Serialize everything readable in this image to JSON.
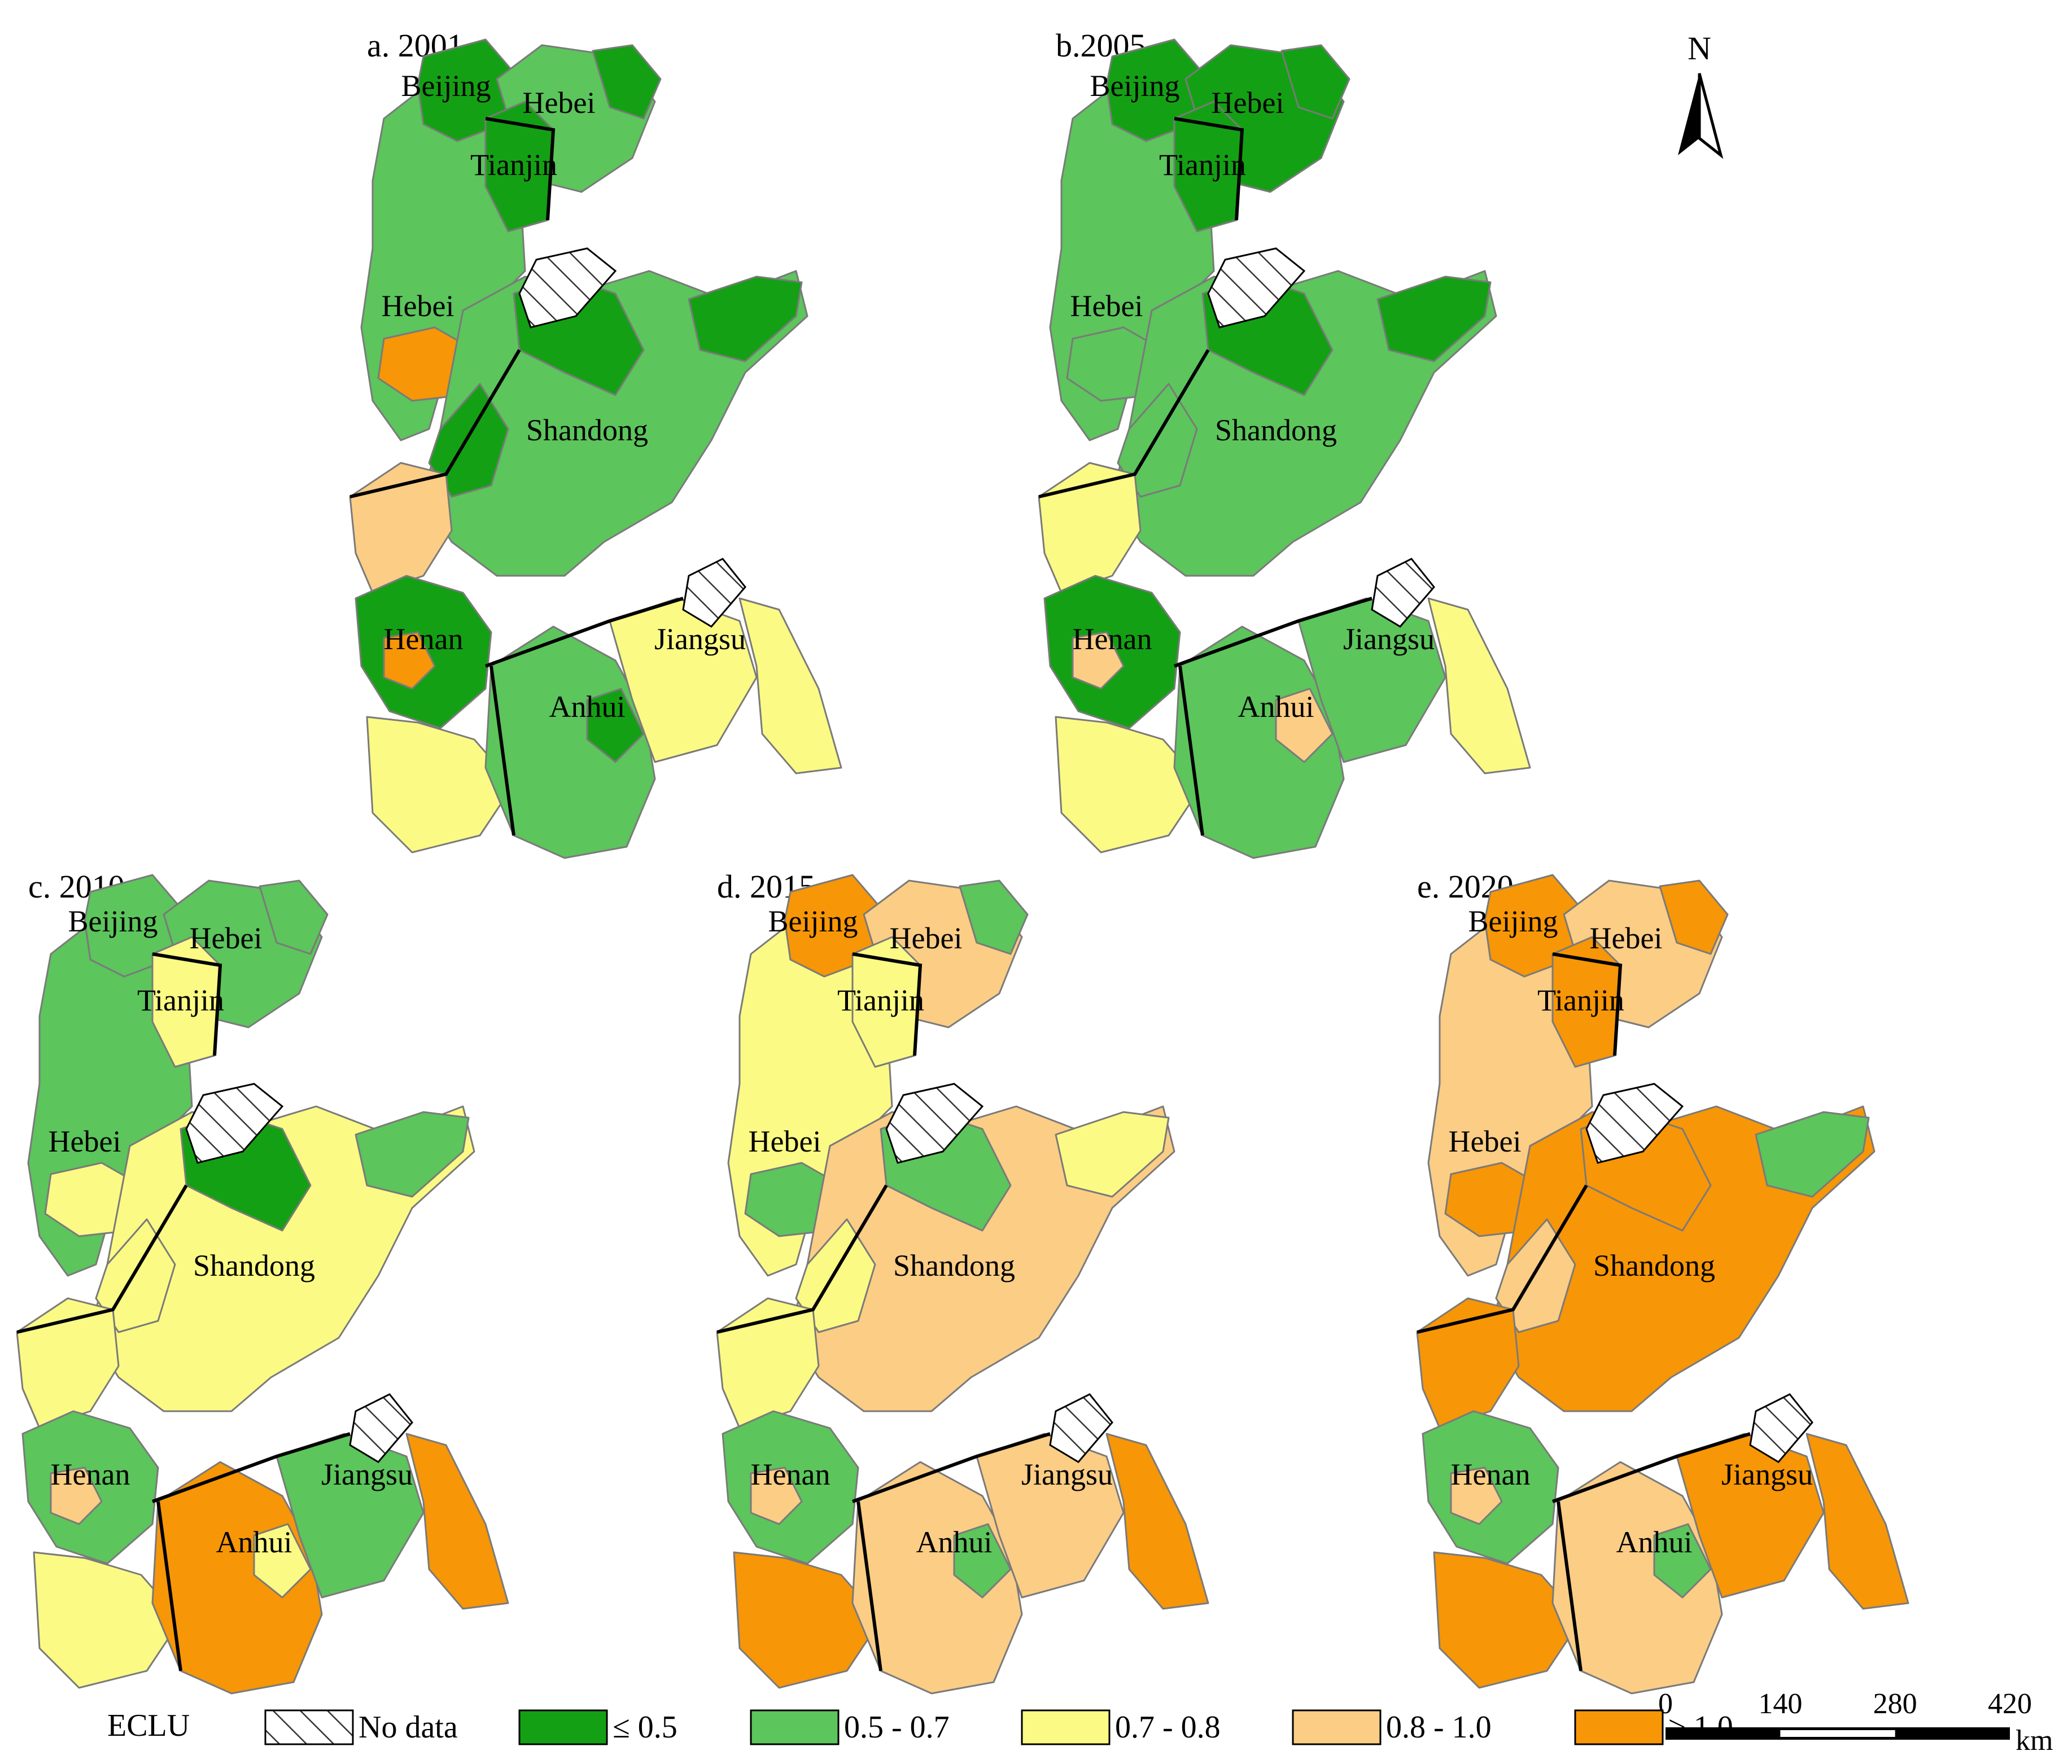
{
  "colors": {
    "no_data": "#ffffff",
    "le_0_5": "#14a014",
    "c_0_5_0_7": "#5cc55c",
    "c_0_7_0_8": "#fbfa84",
    "c_0_8_1_0": "#fbcd85",
    "ge_1_0": "#f79606",
    "county_border": "#7a7a7a",
    "province_border": "#000000"
  },
  "panels": [
    {
      "title": "a. 2001",
      "labels": {
        "beijing": "Beijing",
        "tianjin": "Tianjin",
        "hebei_n": "Hebei",
        "hebei_s": "Hebei",
        "shandong": "Shandong",
        "henan": "Henan",
        "jiangsu": "Jiangsu",
        "anhui": "Anhui"
      },
      "fills": {
        "beijing": "le_0_5",
        "tianjin": "le_0_5",
        "hebei_ne": "c_0_5_0_7",
        "hebei_ne_tip": "le_0_5",
        "hebei_w": "c_0_5_0_7",
        "hebei_s_spot": "ge_1_0",
        "shandong_w": "le_0_5",
        "shandong_c": "c_0_5_0_7",
        "shandong_n": "le_0_5",
        "shandong_e": "le_0_5",
        "henan_n": "c_0_8_1_0",
        "henan_c": "le_0_5",
        "henan_s": "c_0_7_0_8",
        "henan_spot": "ge_1_0",
        "jiangsu": "c_0_7_0_8",
        "jiangsu_e": "c_0_7_0_8",
        "anhui": "c_0_5_0_7",
        "anhui_spot": "le_0_5"
      }
    },
    {
      "title": "b.2005",
      "labels": {
        "beijing": "Beijing",
        "tianjin": "Tianjin",
        "hebei_n": "Hebei",
        "hebei_s": "Hebei",
        "shandong": "Shandong",
        "henan": "Henan",
        "jiangsu": "Jiangsu",
        "anhui": "Anhui"
      },
      "fills": {
        "beijing": "le_0_5",
        "tianjin": "le_0_5",
        "hebei_ne": "le_0_5",
        "hebei_ne_tip": "le_0_5",
        "hebei_w": "c_0_5_0_7",
        "hebei_s_spot": "c_0_5_0_7",
        "shandong_w": "c_0_5_0_7",
        "shandong_c": "c_0_5_0_7",
        "shandong_n": "le_0_5",
        "shandong_e": "le_0_5",
        "henan_n": "c_0_7_0_8",
        "henan_c": "le_0_5",
        "henan_s": "c_0_7_0_8",
        "henan_spot": "c_0_8_1_0",
        "jiangsu": "c_0_5_0_7",
        "jiangsu_e": "c_0_7_0_8",
        "anhui": "c_0_5_0_7",
        "anhui_spot": "c_0_8_1_0"
      }
    },
    {
      "title": "c. 2010",
      "labels": {
        "beijing": "Beijing",
        "tianjin": "Tianjin",
        "hebei_n": "Hebei",
        "hebei_s": "Hebei",
        "shandong": "Shandong",
        "henan": "Henan",
        "jiangsu": "Jiangsu",
        "anhui": "Anhui"
      },
      "fills": {
        "beijing": "c_0_5_0_7",
        "tianjin": "c_0_7_0_8",
        "hebei_ne": "c_0_5_0_7",
        "hebei_ne_tip": "c_0_5_0_7",
        "hebei_w": "c_0_5_0_7",
        "hebei_s_spot": "c_0_7_0_8",
        "shandong_w": "c_0_7_0_8",
        "shandong_c": "c_0_7_0_8",
        "shandong_n": "le_0_5",
        "shandong_e": "c_0_5_0_7",
        "henan_n": "c_0_7_0_8",
        "henan_c": "c_0_5_0_7",
        "henan_s": "c_0_7_0_8",
        "henan_spot": "c_0_8_1_0",
        "jiangsu": "c_0_5_0_7",
        "jiangsu_e": "ge_1_0",
        "anhui": "ge_1_0",
        "anhui_spot": "c_0_7_0_8"
      }
    },
    {
      "title": "d. 2015",
      "labels": {
        "beijing": "Beijing",
        "tianjin": "Tianjin",
        "hebei_n": "Hebei",
        "hebei_s": "Hebei",
        "shandong": "Shandong",
        "henan": "Henan",
        "jiangsu": "Jiangsu",
        "anhui": "Anhui"
      },
      "fills": {
        "beijing": "ge_1_0",
        "tianjin": "c_0_7_0_8",
        "hebei_ne": "c_0_8_1_0",
        "hebei_ne_tip": "c_0_5_0_7",
        "hebei_w": "c_0_7_0_8",
        "hebei_s_spot": "c_0_5_0_7",
        "shandong_w": "c_0_7_0_8",
        "shandong_c": "c_0_8_1_0",
        "shandong_n": "c_0_5_0_7",
        "shandong_e": "c_0_7_0_8",
        "henan_n": "c_0_7_0_8",
        "henan_c": "c_0_5_0_7",
        "henan_s": "ge_1_0",
        "henan_spot": "c_0_8_1_0",
        "jiangsu": "c_0_8_1_0",
        "jiangsu_e": "ge_1_0",
        "anhui": "c_0_8_1_0",
        "anhui_spot": "c_0_5_0_7"
      }
    },
    {
      "title": "e. 2020",
      "labels": {
        "beijing": "Beijing",
        "tianjin": "Tianjin",
        "hebei_n": "Hebei",
        "hebei_s": "Hebei",
        "shandong": "Shandong",
        "henan": "Henan",
        "jiangsu": "Jiangsu",
        "anhui": "Anhui"
      },
      "fills": {
        "beijing": "ge_1_0",
        "tianjin": "ge_1_0",
        "hebei_ne": "c_0_8_1_0",
        "hebei_ne_tip": "ge_1_0",
        "hebei_w": "c_0_8_1_0",
        "hebei_s_spot": "ge_1_0",
        "shandong_w": "c_0_8_1_0",
        "shandong_c": "ge_1_0",
        "shandong_n": "ge_1_0",
        "shandong_e": "c_0_5_0_7",
        "henan_n": "ge_1_0",
        "henan_c": "c_0_5_0_7",
        "henan_s": "ge_1_0",
        "henan_spot": "c_0_8_1_0",
        "jiangsu": "ge_1_0",
        "jiangsu_e": "ge_1_0",
        "anhui": "c_0_8_1_0",
        "anhui_spot": "c_0_5_0_7"
      }
    }
  ],
  "north_arrow": {
    "label": "N"
  },
  "legend": {
    "title": "ECLU",
    "items": [
      {
        "key": "no_data",
        "label": "No data",
        "hatched": true
      },
      {
        "key": "le_0_5",
        "label": "≤ 0.5"
      },
      {
        "key": "c_0_5_0_7",
        "label": "0.5 - 0.7"
      },
      {
        "key": "c_0_7_0_8",
        "label": "0.7 - 0.8"
      },
      {
        "key": "c_0_8_1_0",
        "label": "0.8 - 1.0"
      },
      {
        "key": "ge_1_0",
        "label": "≥ 1.0"
      }
    ]
  },
  "scale_bar": {
    "ticks": [
      "0",
      "140",
      "280",
      "420"
    ],
    "unit": "km"
  }
}
